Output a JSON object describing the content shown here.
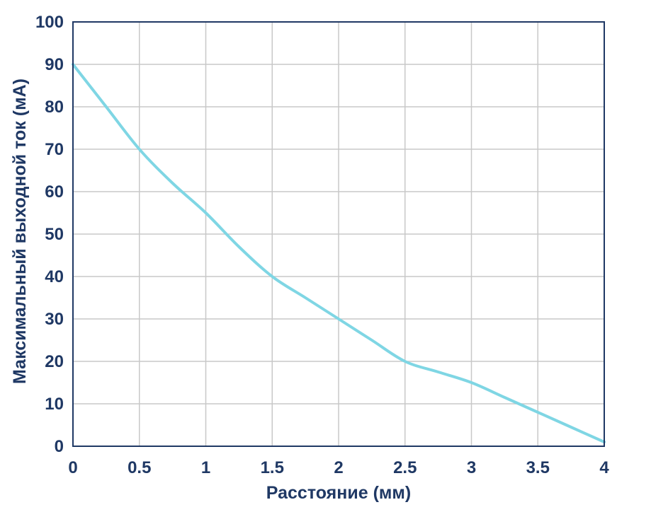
{
  "chart_data": {
    "type": "line",
    "title": "",
    "xlabel": "Расстояние (мм)",
    "ylabel": "Максимальный выходной ток (мА)",
    "xlim": [
      0,
      4
    ],
    "ylim": [
      0,
      100
    ],
    "x_ticks": [
      "0",
      "0.5",
      "1",
      "1.5",
      "2",
      "2.5",
      "3",
      "3.5",
      "4"
    ],
    "y_ticks": [
      "0",
      "10",
      "20",
      "30",
      "40",
      "50",
      "60",
      "70",
      "80",
      "90",
      "100"
    ],
    "grid": true,
    "series": [
      {
        "color": "#7fd6e4",
        "x": [
          0,
          0.25,
          0.5,
          0.75,
          1,
          1.25,
          1.5,
          1.75,
          2,
          2.25,
          2.5,
          2.75,
          3,
          3.25,
          3.5,
          3.75,
          4
        ],
        "y": [
          90,
          80,
          70,
          62,
          55,
          47,
          40,
          35,
          30,
          25,
          20,
          17.5,
          15,
          11.5,
          8,
          4.5,
          1
        ]
      }
    ],
    "colors": {
      "axis": "#1f3864",
      "grid": "#c8c8c8",
      "text": "#1f3864"
    }
  }
}
